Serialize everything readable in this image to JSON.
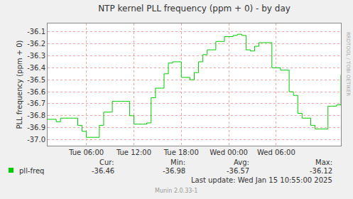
{
  "chart_data": {
    "type": "line",
    "title": "NTP kernel PLL frequency (ppm + 0) - by day",
    "y_label": "PLL frequency (ppm + 0)",
    "categories": [
      null,
      null,
      null,
      null,
      null,
      null,
      null,
      null,
      null,
      "Tue 06:00",
      null,
      null,
      null,
      null,
      null,
      null,
      null,
      null,
      null,
      null,
      "Tue 12:00",
      null,
      null,
      null,
      null,
      null,
      null,
      null,
      null,
      null,
      null,
      "Tue 18:00",
      null,
      null,
      null,
      null,
      null,
      null,
      null,
      null,
      null,
      null,
      "Wed 00:00",
      null,
      null,
      null,
      null,
      null,
      null,
      null,
      null,
      null,
      null,
      "Wed 06:00",
      null,
      null,
      null,
      null,
      null,
      null,
      null,
      null,
      null,
      null,
      null,
      null,
      null,
      null,
      null
    ],
    "series": [
      {
        "name": "pll-freq",
        "color": "#00cc00",
        "values": [
          -36.83,
          -36.83,
          -36.85,
          -36.82,
          -36.82,
          -36.82,
          -36.82,
          -36.88,
          -36.93,
          -36.98,
          -36.98,
          -36.98,
          -36.88,
          -36.77,
          -36.77,
          -36.68,
          -36.68,
          -36.68,
          -36.68,
          -36.8,
          -36.87,
          -36.87,
          -36.87,
          -36.86,
          -36.65,
          -36.57,
          -36.57,
          -36.45,
          -36.36,
          -36.35,
          -36.35,
          -36.48,
          -36.48,
          -36.5,
          -36.44,
          -36.35,
          -36.29,
          -36.25,
          -36.25,
          -36.18,
          -36.18,
          -36.14,
          -36.14,
          -36.13,
          -36.12,
          -36.13,
          -36.25,
          -36.26,
          -36.22,
          -36.19,
          -36.19,
          -36.19,
          -36.4,
          -36.4,
          -36.42,
          -36.42,
          -36.6,
          -36.63,
          -36.78,
          -36.82,
          -36.82,
          -36.88,
          -36.91,
          -36.91,
          -36.91,
          -36.72,
          -36.72,
          -36.71,
          -36.46
        ]
      }
    ],
    "ylim": [
      -37.05,
      -36.03
    ],
    "yticks": [
      {
        "value": -37,
        "label": "-37.0"
      },
      -36.9,
      -36.8,
      -36.7,
      -36.6,
      -36.5,
      -36.4,
      -36.3,
      -36.2,
      -36.1
    ],
    "grid": true,
    "line_style": "step",
    "legend": "bottom",
    "summary": {
      "labels": [
        "Cur:",
        "Min:",
        "Avg:",
        "Max:"
      ],
      "values": [
        -36.46,
        -36.98,
        -36.57,
        -36.12
      ]
    },
    "last_update": "Last update: Wed Jan 15 10:55:00 2025",
    "footer": "Munin 2.0.33-1",
    "watermark": "RRDTOOL / TOBI OETIKER"
  }
}
